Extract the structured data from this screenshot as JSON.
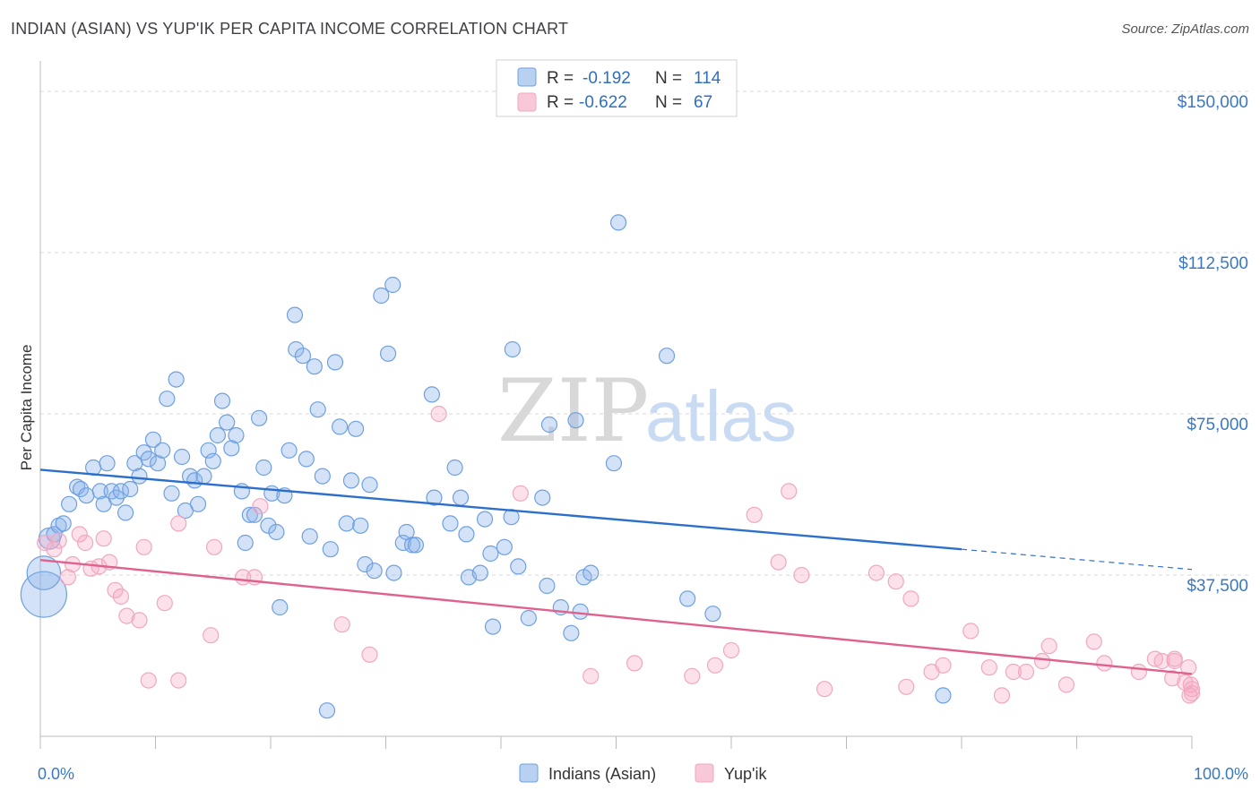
{
  "title": "INDIAN (ASIAN) VS YUP'IK PER CAPITA INCOME CORRELATION CHART",
  "source": "Source: ZipAtlas.com",
  "watermark": {
    "zip": "ZIP",
    "atlas": "atlas"
  },
  "chart_data": {
    "type": "scatter",
    "xlabel": "",
    "ylabel": "Per Capita Income",
    "xlim": [
      0,
      100
    ],
    "ylim": [
      0,
      155000
    ],
    "x_tick_labels": [
      {
        "value": 0,
        "label": "0.0%"
      },
      {
        "value": 100,
        "label": "100.0%"
      }
    ],
    "y_ticks": [
      {
        "value": 37500,
        "label": "$37,500"
      },
      {
        "value": 75000,
        "label": "$75,000"
      },
      {
        "value": 112500,
        "label": "$112,500"
      },
      {
        "value": 150000,
        "label": "$150,000"
      }
    ],
    "grid": "horizontal-dashed",
    "legend": {
      "placement": "top-center",
      "rows": [
        {
          "r_label": "R =",
          "r": "-0.192",
          "n_label": "N =",
          "n": "114"
        },
        {
          "r_label": "R =",
          "r": "-0.622",
          "n_label": "N =",
          "n": "67"
        }
      ]
    },
    "series": [
      {
        "name": "Indians (Asian)",
        "color": "#6ea0e0",
        "line_color": "#2d6fcc",
        "trend": {
          "x0": 0,
          "y0": 62000,
          "x1": 80,
          "y1": 43500,
          "dash_to_x": 100,
          "dash_to_y": 38800
        },
        "points": [
          [
            0.3,
            33000,
            3
          ],
          [
            0.3,
            38000,
            2.2
          ],
          [
            0.8,
            46000,
            1.4
          ],
          [
            1.2,
            47000,
            1
          ],
          [
            1.6,
            49000,
            1
          ],
          [
            2,
            49500,
            1
          ],
          [
            2.5,
            54000,
            1
          ],
          [
            3.2,
            58000,
            1
          ],
          [
            3.5,
            57500,
            1
          ],
          [
            4,
            56000,
            1
          ],
          [
            4.6,
            62500,
            1
          ],
          [
            5.2,
            57000,
            1
          ],
          [
            5.5,
            54000,
            1
          ],
          [
            5.8,
            63500,
            1
          ],
          [
            6.2,
            57000,
            1
          ],
          [
            6.6,
            55500,
            1
          ],
          [
            7,
            57000,
            1
          ],
          [
            7.4,
            52000,
            1
          ],
          [
            7.8,
            57500,
            1
          ],
          [
            8.2,
            63500,
            1
          ],
          [
            8.6,
            60500,
            1
          ],
          [
            9,
            66000,
            1
          ],
          [
            9.4,
            64500,
            1
          ],
          [
            9.8,
            69000,
            1
          ],
          [
            10.2,
            63500,
            1
          ],
          [
            10.6,
            66500,
            1
          ],
          [
            11,
            78500,
            1
          ],
          [
            11.4,
            56500,
            1
          ],
          [
            11.8,
            83000,
            1
          ],
          [
            12.3,
            65000,
            1
          ],
          [
            12.6,
            52500,
            1
          ],
          [
            13,
            60500,
            1
          ],
          [
            13.4,
            59500,
            1
          ],
          [
            13.7,
            54000,
            1
          ],
          [
            14.2,
            60500,
            1
          ],
          [
            14.6,
            66500,
            1
          ],
          [
            15,
            64000,
            1
          ],
          [
            15.4,
            70000,
            1
          ],
          [
            15.8,
            78000,
            1
          ],
          [
            16.2,
            73000,
            1
          ],
          [
            16.6,
            67000,
            1
          ],
          [
            17,
            70000,
            1
          ],
          [
            17.5,
            57000,
            1
          ],
          [
            17.8,
            45000,
            1
          ],
          [
            18.2,
            51500,
            1
          ],
          [
            18.6,
            51500,
            1
          ],
          [
            19,
            74000,
            1
          ],
          [
            19.4,
            62500,
            1
          ],
          [
            19.8,
            49000,
            1
          ],
          [
            20.1,
            56500,
            1
          ],
          [
            20.5,
            47500,
            1
          ],
          [
            20.8,
            30000,
            1
          ],
          [
            21.2,
            56000,
            1
          ],
          [
            21.6,
            66500,
            1
          ],
          [
            22.1,
            98000,
            1
          ],
          [
            22.2,
            90000,
            1
          ],
          [
            22.8,
            88500,
            1
          ],
          [
            23.1,
            64500,
            1
          ],
          [
            23.4,
            46500,
            1
          ],
          [
            23.8,
            86000,
            1
          ],
          [
            24.1,
            76000,
            1
          ],
          [
            24.5,
            60500,
            1
          ],
          [
            24.9,
            6000,
            1
          ],
          [
            25.2,
            43500,
            1
          ],
          [
            25.6,
            87000,
            1
          ],
          [
            26,
            72000,
            1
          ],
          [
            26.6,
            49500,
            1
          ],
          [
            27,
            59500,
            1
          ],
          [
            27.4,
            71500,
            1
          ],
          [
            27.8,
            49000,
            1
          ],
          [
            28.2,
            40000,
            1
          ],
          [
            28.6,
            58500,
            1
          ],
          [
            29,
            38500,
            1
          ],
          [
            29.6,
            102500,
            1
          ],
          [
            30.2,
            89000,
            1
          ],
          [
            30.6,
            105000,
            1
          ],
          [
            30.7,
            38000,
            1
          ],
          [
            31.5,
            45000,
            1
          ],
          [
            31.8,
            47500,
            1
          ],
          [
            32.3,
            44500,
            1
          ],
          [
            32.6,
            44500,
            1
          ],
          [
            34,
            79500,
            1
          ],
          [
            34.2,
            55500,
            1
          ],
          [
            35.6,
            49500,
            1
          ],
          [
            36,
            62500,
            1
          ],
          [
            36.5,
            55500,
            1
          ],
          [
            37,
            47000,
            1
          ],
          [
            37.2,
            37000,
            1
          ],
          [
            38.2,
            38000,
            1
          ],
          [
            38.6,
            50500,
            1
          ],
          [
            39.1,
            42500,
            1
          ],
          [
            39.3,
            25500,
            1
          ],
          [
            40.3,
            44000,
            1
          ],
          [
            40.9,
            51000,
            1
          ],
          [
            41,
            90000,
            1
          ],
          [
            41.5,
            39500,
            1
          ],
          [
            42.4,
            27500,
            1
          ],
          [
            43.6,
            55500,
            1
          ],
          [
            44,
            35000,
            1
          ],
          [
            44.2,
            72500,
            1
          ],
          [
            45.2,
            30000,
            1
          ],
          [
            46.1,
            24000,
            1
          ],
          [
            46.5,
            73500,
            1
          ],
          [
            46.9,
            29000,
            1
          ],
          [
            47.2,
            37000,
            1
          ],
          [
            47.8,
            38000,
            1
          ],
          [
            49.8,
            63500,
            1
          ],
          [
            50.2,
            119500,
            1
          ],
          [
            54.4,
            88500,
            1
          ],
          [
            56.2,
            32000,
            1
          ],
          [
            58.4,
            28500,
            1
          ],
          [
            78.4,
            9500,
            1
          ]
        ]
      },
      {
        "name": "Yup'ik",
        "color": "#f0a8c0",
        "line_color": "#e0608e",
        "trend": {
          "x0": 0,
          "y0": 41000,
          "x1": 100,
          "y1": 14500
        },
        "points": [
          [
            0.4,
            45000,
            1
          ],
          [
            1.2,
            43500,
            1
          ],
          [
            1.6,
            45500,
            1
          ],
          [
            2.4,
            37000,
            1
          ],
          [
            2.8,
            40000,
            1
          ],
          [
            3.4,
            47000,
            1
          ],
          [
            3.9,
            45000,
            1
          ],
          [
            4.4,
            39000,
            1
          ],
          [
            5.1,
            39500,
            1
          ],
          [
            5.5,
            46000,
            1
          ],
          [
            6,
            40500,
            1
          ],
          [
            6.5,
            34000,
            1
          ],
          [
            7,
            32500,
            1
          ],
          [
            7.5,
            28000,
            1
          ],
          [
            8.6,
            27000,
            1
          ],
          [
            9,
            44000,
            1
          ],
          [
            9.4,
            13000,
            1
          ],
          [
            10.8,
            31000,
            1
          ],
          [
            12,
            13000,
            1
          ],
          [
            12,
            49500,
            1
          ],
          [
            14.8,
            23500,
            1
          ],
          [
            15.1,
            44000,
            1
          ],
          [
            17.6,
            37000,
            1
          ],
          [
            18.6,
            37000,
            1
          ],
          [
            19.1,
            53500,
            1
          ],
          [
            26.2,
            26000,
            1
          ],
          [
            28.6,
            19000,
            1
          ],
          [
            34.6,
            75000,
            1
          ],
          [
            41.7,
            56500,
            1
          ],
          [
            47.8,
            14000,
            1
          ],
          [
            51.6,
            17000,
            1
          ],
          [
            56.6,
            14000,
            1
          ],
          [
            58.6,
            16500,
            1
          ],
          [
            60,
            20000,
            1
          ],
          [
            62,
            51500,
            1
          ],
          [
            64.1,
            40500,
            1
          ],
          [
            65,
            57000,
            1
          ],
          [
            66.1,
            37500,
            1
          ],
          [
            68.1,
            11000,
            1
          ],
          [
            72.6,
            38000,
            1
          ],
          [
            74.3,
            36000,
            1
          ],
          [
            75.2,
            11500,
            1
          ],
          [
            75.6,
            32000,
            1
          ],
          [
            77.4,
            15000,
            1
          ],
          [
            78.4,
            16500,
            1
          ],
          [
            80.8,
            24500,
            1
          ],
          [
            82.4,
            16000,
            1
          ],
          [
            83.5,
            9500,
            1
          ],
          [
            84.5,
            15000,
            1
          ],
          [
            85.6,
            15000,
            1
          ],
          [
            87,
            17500,
            1
          ],
          [
            87.6,
            21000,
            1
          ],
          [
            89.1,
            12000,
            1
          ],
          [
            91.5,
            22000,
            1
          ],
          [
            92.4,
            17000,
            1
          ],
          [
            95.4,
            15000,
            1
          ],
          [
            96.8,
            18000,
            1
          ],
          [
            97.4,
            17500,
            1
          ],
          [
            98.3,
            13500,
            1
          ],
          [
            98.5,
            17500,
            1
          ],
          [
            98.5,
            18000,
            1
          ],
          [
            99.4,
            12500,
            1
          ],
          [
            99.7,
            16000,
            1
          ],
          [
            99.9,
            12000,
            1
          ],
          [
            100,
            11000,
            1
          ],
          [
            100,
            10000,
            1
          ],
          [
            99.8,
            9500,
            1
          ]
        ]
      }
    ]
  }
}
